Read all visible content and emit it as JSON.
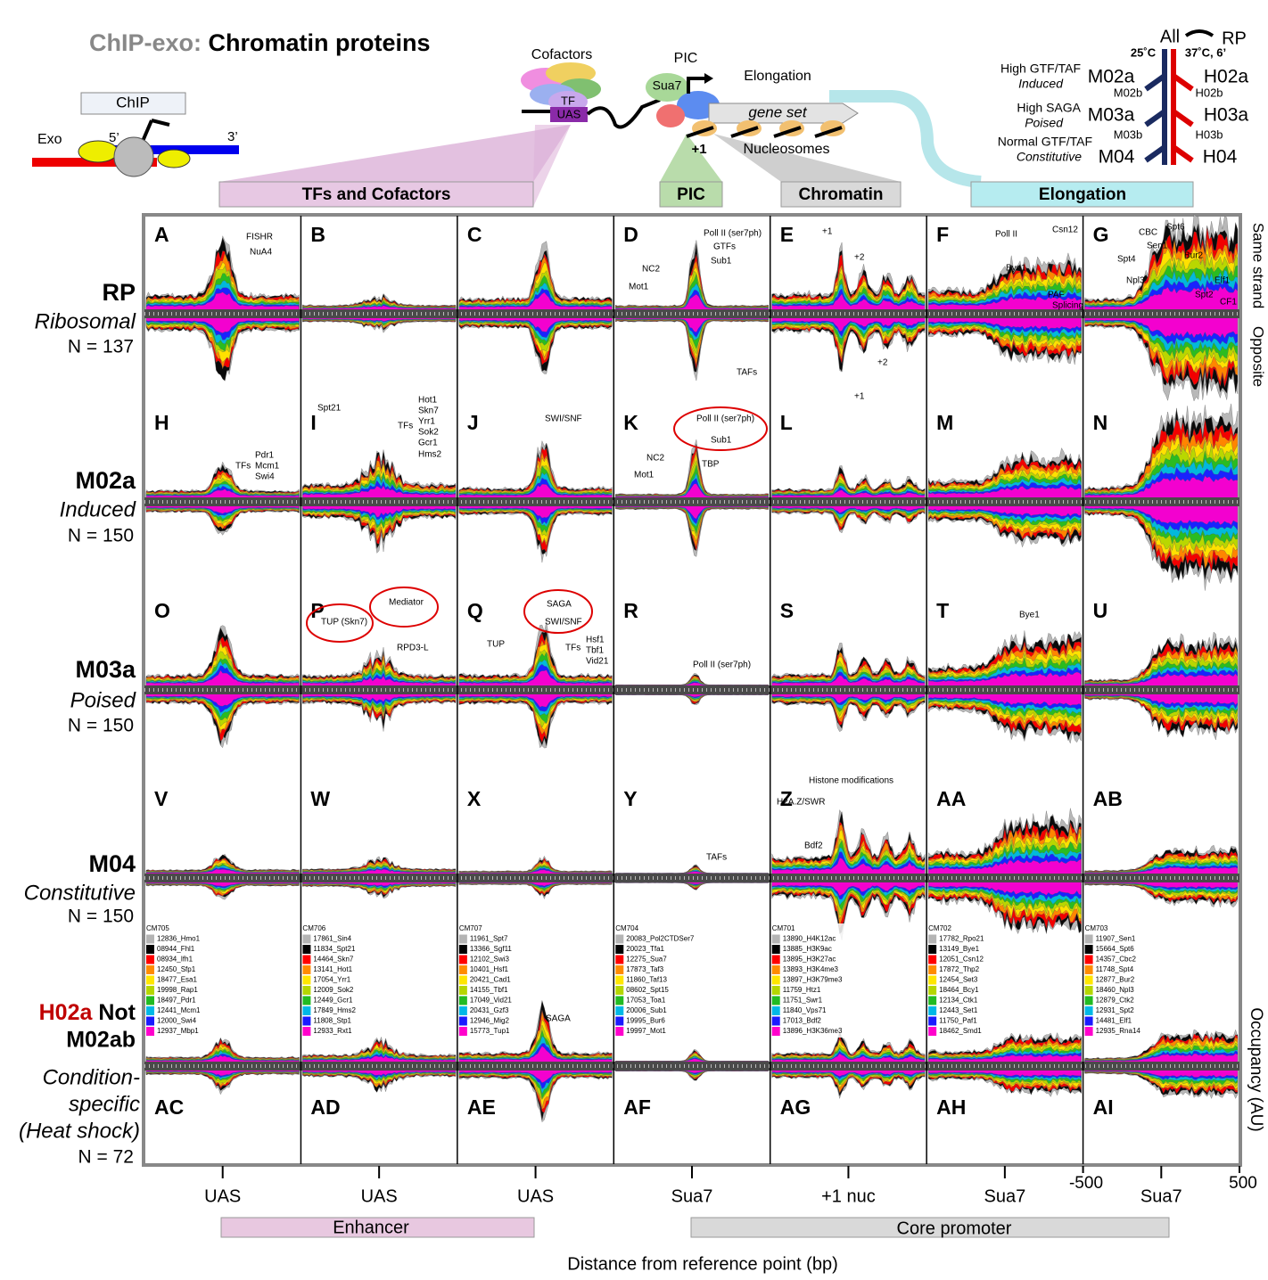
{
  "title": {
    "prefix": "ChIP-exo:",
    "main": "Chromatin proteins"
  },
  "schematic": {
    "chip": "ChIP",
    "exo": "Exo",
    "five": "5’",
    "three": "3’",
    "cofactors": "Cofactors",
    "tf": "TF",
    "uas": "UAS",
    "pic": "PIC",
    "sua7": "Sua7",
    "elongation": "Elongation",
    "gene_set": "gene set",
    "plus1": "+1",
    "nucleosomes": "Nucleosomes"
  },
  "groups": {
    "all": "All",
    "rp": "RP",
    "t25": "25˚C",
    "t37": "37˚C, 6’",
    "rows": [
      {
        "desc": "High GTF/TAF",
        "state": "Induced",
        "m": "M02a",
        "mb": "M02b",
        "h": "H02a",
        "hb": "H02b"
      },
      {
        "desc": "High SAGA",
        "state": "Poised",
        "m": "M03a",
        "mb": "M03b",
        "h": "H03a",
        "hb": "H03b"
      },
      {
        "desc": "Normal GTF/TAF",
        "state": "Constitutive",
        "m": "M04",
        "h": "H04"
      }
    ]
  },
  "categories": [
    "TFs and Cofactors",
    "PIC",
    "Chromatin",
    "Elongation"
  ],
  "rows": [
    {
      "name": "RP",
      "sub": "Ribosomal",
      "n": "N = 137"
    },
    {
      "name": "M02a",
      "sub": "Induced",
      "n": "N = 150"
    },
    {
      "name": "M03a",
      "sub": "Poised",
      "n": "N = 150"
    },
    {
      "name": "M04",
      "sub": "Constitutive",
      "n": "N = 150"
    },
    {
      "name_parts": [
        "H02a",
        "Not",
        "M02ab"
      ],
      "sub_lines": [
        "Condition-",
        "specific",
        "(Heat shock)"
      ],
      "n": "N = 72"
    }
  ],
  "side_labels": {
    "same": "Same strand",
    "opposite": "Opposite",
    "occupancy": "Occupancy (AU)"
  },
  "panels": [
    "A",
    "B",
    "C",
    "D",
    "E",
    "F",
    "G",
    "H",
    "I",
    "J",
    "K",
    "L",
    "M",
    "N",
    "O",
    "P",
    "Q",
    "R",
    "S",
    "T",
    "U",
    "V",
    "W",
    "X",
    "Y",
    "Z",
    "AA",
    "AB",
    "AC",
    "AD",
    "AE",
    "AF",
    "AG",
    "AH",
    "AI"
  ],
  "panel_annotations": [
    "FISHR",
    "NuA4",
    "Poll II (ser7ph)",
    "GTFs",
    "Sub1",
    "NC2",
    "Mot1",
    "TAFs",
    "+1",
    "+2",
    "+2",
    "+1",
    "Poll II",
    "Csn12",
    "Bye1",
    "PAF",
    "Splicing",
    "Spt6",
    "CBC",
    "Sen1",
    "Bur2",
    "Spt4",
    "Npl3",
    "Elf1",
    "Spt2",
    "CF1",
    "Pdr1",
    "Mcm1",
    "Swi4",
    "TFs",
    "Spt21",
    "TFs",
    "Hot1",
    "Skn7",
    "Yrr1",
    "Sok2",
    "Gcr1",
    "Hms2",
    "SWI/SNF",
    "Poll II (ser7ph)",
    "Sub1",
    "TBP",
    "NC2",
    "Mot1",
    "TUP (Skn7)",
    "Mediator",
    "RPD3-L",
    "SAGA",
    "SWI/SNF",
    "TUP",
    "TFs",
    "Hsf1",
    "Tbf1",
    "Vid21",
    "Poll II (ser7ph)",
    "Bye1",
    "TAFs",
    "Histone modifications",
    "H2A.Z/SWR",
    "Bdf2",
    "SAGA"
  ],
  "legend_colors": [
    "#b4b4b4",
    "#000000",
    "#ff0000",
    "#ff8c00",
    "#ffe600",
    "#b5d600",
    "#22bb22",
    "#00b8e6",
    "#1a1aff",
    "#ff00cc"
  ],
  "legends": [
    {
      "id": "CM705",
      "entries": [
        "12836_Hmo1",
        "08944_Fhl1",
        "08934_Ifh1",
        "12450_Sfp1",
        "18477_Esa1",
        "19998_Rap1",
        "18497_Pdr1",
        "12441_Mcm1",
        "12000_Swi4",
        "12937_Mbp1"
      ]
    },
    {
      "id": "CM706",
      "entries": [
        "17861_Sin4",
        "11834_Spt21",
        "14464_Skn7",
        "13141_Hot1",
        "17054_Yrr1",
        "12009_Sok2",
        "12449_Gcr1",
        "17849_Hms2",
        "11808_Stp1",
        "12933_Rxt1"
      ]
    },
    {
      "id": "CM707",
      "entries": [
        "11961_Spt7",
        "13366_Sgf11",
        "12102_Swi3",
        "10401_Hsf1",
        "20421_Cad1",
        "14155_Tbf1",
        "17049_Vid21",
        "20431_Gzf3",
        "12946_Mig2",
        "15773_Tup1"
      ]
    },
    {
      "id": "CM704",
      "entries": [
        "20083_Pol2CTDSer7",
        "20023_Tfa1",
        "12275_Sua7",
        "17873_Taf3",
        "11860_Taf13",
        "08602_Spt15",
        "17053_Toa1",
        "20006_Sub1",
        "19995_Bur6",
        "19997_Mot1"
      ]
    },
    {
      "id": "CM701",
      "entries": [
        "13890_H4K12ac",
        "13885_H3K9ac",
        "13895_H3K27ac",
        "13893_H3K4me3",
        "13897_H3K79me3",
        "11759_Htz1",
        "11751_Swr1",
        "11840_Vps71",
        "17013_Bdf2",
        "13896_H3K36me3"
      ]
    },
    {
      "id": "CM702",
      "entries": [
        "17782_Rpo21",
        "13149_Bye1",
        "12051_Csn12",
        "17872_Thp2",
        "12454_Set3",
        "18464_Bcy1",
        "12134_Ctk1",
        "12443_Set1",
        "11750_Paf1",
        "18462_Smd1"
      ]
    },
    {
      "id": "CM703",
      "entries": [
        "11907_Sen1",
        "15664_Spt6",
        "14357_Cbc2",
        "11748_Spt4",
        "12877_Bur2",
        "18460_Npl3",
        "12879_Ctk2",
        "12931_Spt2",
        "14481_Elf1",
        "12935_Rna14"
      ]
    }
  ],
  "x_labels": [
    "UAS",
    "UAS",
    "UAS",
    "Sua7",
    "+1 nuc",
    "Sua7",
    "Sua7"
  ],
  "x_range_labels": [
    "-500",
    "500"
  ],
  "regions": [
    "Enhancer",
    "Core promoter"
  ],
  "x_title": "Distance from reference point (bp)"
}
